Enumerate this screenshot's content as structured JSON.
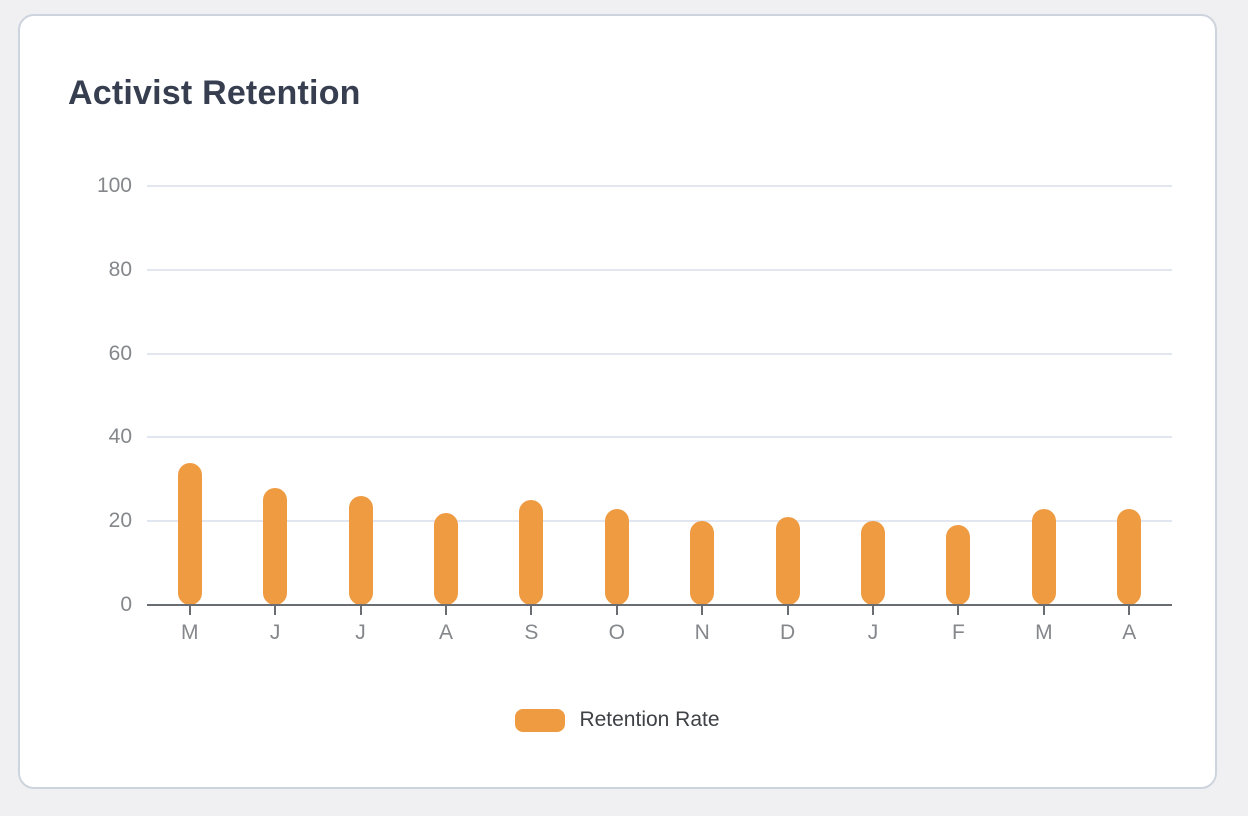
{
  "card": {
    "title": "Activist Retention"
  },
  "colors": {
    "page_bg": "#f0f0f2",
    "card_bg": "#ffffff",
    "card_border": "#ced4dd",
    "title_text": "#363e4f",
    "bar_fill": "#ef9b42",
    "axis_line": "#696c70",
    "grid_line": "#e2e6f1",
    "axis_label_text": "#84878b",
    "legend_text": "#3e4145"
  },
  "chart_data": {
    "type": "bar",
    "title": "Activist Retention",
    "categories": [
      "M",
      "J",
      "J",
      "A",
      "S",
      "O",
      "N",
      "D",
      "J",
      "F",
      "M",
      "A"
    ],
    "series": [
      {
        "name": "Retention Rate",
        "color": "#ef9b42",
        "values": [
          34,
          28,
          26,
          22,
          25,
          23,
          20,
          21,
          20,
          19,
          23,
          23
        ]
      }
    ],
    "xlabel": "",
    "ylabel": "",
    "ylim": [
      0,
      100
    ],
    "yticks": [
      0,
      20,
      40,
      60,
      80,
      100
    ],
    "grid": true,
    "legend_position": "bottom"
  },
  "legend": {
    "label": "Retention Rate"
  }
}
